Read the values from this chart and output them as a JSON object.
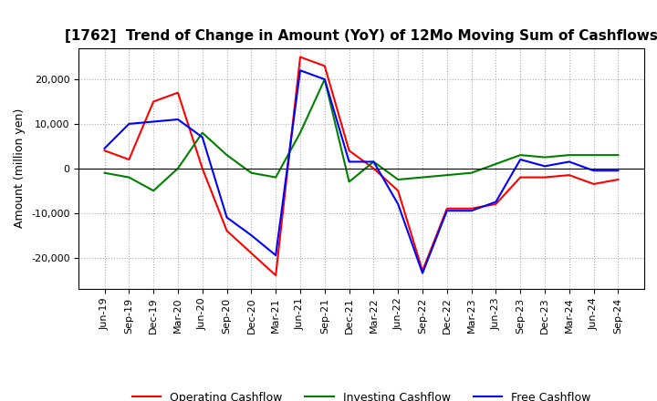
{
  "title": "[1762]  Trend of Change in Amount (YoY) of 12Mo Moving Sum of Cashflows",
  "ylabel": "Amount (million yen)",
  "x_labels": [
    "Jun-19",
    "Sep-19",
    "Dec-19",
    "Mar-20",
    "Jun-20",
    "Sep-20",
    "Dec-20",
    "Mar-21",
    "Jun-21",
    "Sep-21",
    "Dec-21",
    "Mar-22",
    "Jun-22",
    "Sep-22",
    "Dec-22",
    "Mar-23",
    "Jun-23",
    "Sep-23",
    "Dec-23",
    "Mar-24",
    "Jun-24",
    "Sep-24"
  ],
  "operating": [
    4000,
    2000,
    15000,
    17000,
    0,
    -14000,
    -19000,
    -24000,
    25000,
    23000,
    4000,
    0,
    -5000,
    -23000,
    -9000,
    -9000,
    -8000,
    -2000,
    -2000,
    -1500,
    -3500,
    -2500
  ],
  "investing": [
    -1000,
    -2000,
    -5000,
    0,
    8000,
    3000,
    -1000,
    -2000,
    8000,
    20000,
    -3000,
    1500,
    -2500,
    -2000,
    -1500,
    -1000,
    1000,
    3000,
    2500,
    3000,
    3000,
    3000
  ],
  "free": [
    4500,
    10000,
    10500,
    11000,
    7000,
    -11000,
    -15000,
    -19500,
    22000,
    20000,
    1500,
    1500,
    -8000,
    -23500,
    -9500,
    -9500,
    -7500,
    2000,
    500,
    1500,
    -500,
    -500
  ],
  "ylim": [
    -27000,
    27000
  ],
  "yticks": [
    -20000,
    -10000,
    0,
    10000,
    20000
  ],
  "colors": {
    "operating": "#ff0000",
    "investing": "#008000",
    "free": "#0000ff"
  },
  "legend_labels": [
    "Operating Cashflow",
    "Investing Cashflow",
    "Free Cashflow"
  ],
  "background_color": "#ffffff",
  "grid_color": "#aaaaaa",
  "title_fontsize": 11,
  "label_fontsize": 9,
  "tick_fontsize": 8
}
